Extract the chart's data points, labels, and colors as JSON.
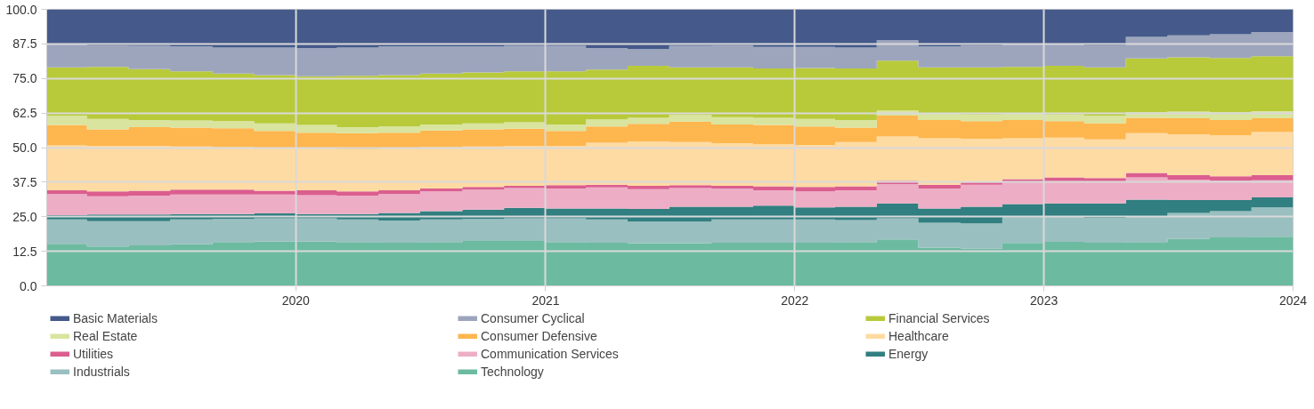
{
  "chart_data": {
    "type": "area",
    "stacked": true,
    "x": [
      "2019-01",
      "2019-03",
      "2019-05",
      "2019-07",
      "2019-09",
      "2019-11",
      "2020-01",
      "2020-03",
      "2020-05",
      "2020-07",
      "2020-09",
      "2020-11",
      "2021-01",
      "2021-03",
      "2021-05",
      "2021-07",
      "2021-09",
      "2021-11",
      "2022-01",
      "2022-03",
      "2022-05",
      "2022-07",
      "2022-09",
      "2022-11",
      "2023-01",
      "2023-03",
      "2023-05",
      "2023-07",
      "2023-09",
      "2023-11",
      "2024-01"
    ],
    "series": [
      {
        "name": "Technology",
        "color": "#6cbba0",
        "values": [
          15.2,
          14.2,
          14.6,
          15.0,
          15.8,
          16.0,
          16.0,
          15.8,
          15.6,
          15.8,
          16.2,
          16.2,
          15.8,
          15.6,
          15.4,
          15.4,
          15.6,
          15.6,
          15.6,
          15.8,
          16.8,
          13.8,
          13.4,
          15.5,
          15.9,
          15.6,
          15.8,
          17.0,
          17.5,
          17.8,
          17.8
        ]
      },
      {
        "name": "Industrials",
        "color": "#9abfc0",
        "values": [
          8.8,
          9.2,
          8.8,
          9.0,
          8.4,
          8.4,
          8.4,
          8.2,
          8.0,
          8.2,
          8.0,
          8.2,
          8.6,
          8.4,
          7.8,
          7.8,
          8.4,
          8.4,
          8.4,
          8.0,
          7.6,
          9.0,
          9.2,
          9.3,
          9.1,
          9.0,
          9.4,
          9.4,
          9.5,
          10.6,
          10.6
        ]
      },
      {
        "name": "Energy",
        "color": "#317f80",
        "values": [
          1.6,
          2.4,
          2.4,
          2.0,
          1.8,
          1.8,
          1.6,
          2.0,
          2.8,
          3.0,
          3.4,
          3.8,
          3.6,
          4.0,
          4.6,
          5.4,
          4.6,
          5.0,
          4.4,
          4.8,
          5.4,
          5.2,
          6.0,
          4.8,
          4.8,
          5.2,
          6.0,
          4.6,
          4.0,
          3.6,
          3.6
        ]
      },
      {
        "name": "Communication Services",
        "color": "#edaec5",
        "values": [
          7.6,
          6.6,
          6.8,
          7.0,
          7.0,
          6.8,
          6.8,
          6.6,
          6.8,
          7.2,
          7.2,
          7.2,
          7.2,
          7.6,
          7.2,
          6.8,
          6.6,
          5.6,
          5.8,
          6.0,
          7.0,
          7.2,
          8.0,
          7.8,
          7.8,
          8.0,
          8.0,
          7.4,
          7.0,
          6.2,
          6.2
        ]
      },
      {
        "name": "Utilities",
        "color": "#db5e8f",
        "values": [
          1.4,
          1.8,
          1.8,
          1.8,
          1.8,
          1.4,
          1.8,
          1.6,
          1.4,
          1.0,
          1.0,
          0.8,
          1.2,
          1.0,
          1.2,
          1.0,
          1.0,
          1.4,
          1.6,
          1.4,
          1.2,
          1.4,
          0.8,
          1.2,
          1.6,
          1.2,
          1.6,
          1.6,
          1.6,
          1.8,
          1.8
        ]
      },
      {
        "name": "Healthcare",
        "color": "#fedba3",
        "values": [
          16.2,
          16.4,
          16.2,
          15.6,
          15.4,
          15.4,
          15.2,
          15.2,
          15.0,
          15.0,
          14.6,
          14.4,
          14.2,
          15.2,
          16.0,
          15.6,
          15.4,
          15.2,
          15.2,
          16.0,
          16.0,
          16.8,
          15.8,
          14.8,
          14.4,
          14.0,
          14.4,
          14.8,
          14.8,
          15.6,
          15.6
        ]
      },
      {
        "name": "Consumer Defensive",
        "color": "#feb64e",
        "values": [
          7.4,
          6.0,
          6.8,
          6.8,
          6.8,
          6.2,
          5.6,
          5.8,
          5.8,
          6.0,
          6.2,
          6.2,
          5.4,
          5.8,
          6.4,
          7.4,
          6.8,
          7.0,
          6.6,
          5.2,
          7.6,
          6.6,
          6.4,
          6.6,
          6.0,
          5.8,
          5.6,
          5.8,
          5.6,
          5.0,
          5.0
        ]
      },
      {
        "name": "Real Estate",
        "color": "#d9e49f",
        "values": [
          3.4,
          3.8,
          2.6,
          2.6,
          2.6,
          2.8,
          2.8,
          2.2,
          2.2,
          2.2,
          2.2,
          2.4,
          2.4,
          2.6,
          2.2,
          2.4,
          2.6,
          2.6,
          2.8,
          2.8,
          1.8,
          2.2,
          2.4,
          2.2,
          2.4,
          2.8,
          2.0,
          2.4,
          2.8,
          2.6,
          2.6
        ]
      },
      {
        "name": "Financial Services",
        "color": "#b8ca3a",
        "values": [
          17.4,
          18.8,
          18.4,
          17.8,
          17.2,
          17.4,
          17.6,
          18.6,
          18.6,
          18.4,
          18.4,
          18.4,
          19.2,
          18.0,
          18.8,
          17.2,
          18.0,
          17.8,
          18.4,
          18.6,
          18.0,
          16.8,
          17.0,
          17.0,
          17.6,
          17.4,
          19.4,
          19.6,
          19.6,
          19.8,
          19.8
        ]
      },
      {
        "name": "Consumer Cyclical",
        "color": "#9da5bd",
        "values": [
          8.4,
          7.8,
          8.4,
          9.0,
          9.4,
          10.0,
          10.2,
          10.2,
          10.4,
          9.8,
          9.4,
          9.2,
          9.2,
          7.8,
          6.0,
          7.8,
          8.0,
          7.8,
          7.6,
          7.6,
          7.4,
          7.6,
          8.0,
          8.0,
          7.6,
          8.0,
          7.8,
          8.0,
          8.6,
          8.8,
          8.8
        ]
      },
      {
        "name": "Basic Materials",
        "color": "#455a8a",
        "values": [
          12.6,
          13.0,
          13.2,
          13.4,
          13.8,
          13.8,
          14.0,
          13.8,
          13.4,
          13.4,
          13.4,
          13.2,
          13.2,
          14.0,
          14.4,
          13.2,
          13.0,
          13.6,
          13.6,
          13.8,
          11.2,
          13.4,
          13.0,
          12.8,
          12.8,
          13.0,
          10.0,
          9.4,
          9.0,
          8.2,
          8.2
        ]
      }
    ],
    "xlim": [
      "2019-01",
      "2024-01"
    ],
    "xticks": [
      "2020",
      "2021",
      "2022",
      "2023",
      "2024"
    ],
    "ylim": [
      0,
      100
    ],
    "yticks": [
      {
        "value": 0,
        "label": "0.0"
      },
      {
        "value": 12.5,
        "label": "12.5"
      },
      {
        "value": 25,
        "label": "25.0"
      },
      {
        "value": 37.5,
        "label": "37.5"
      },
      {
        "value": 50,
        "label": "50.0"
      },
      {
        "value": 62.5,
        "label": "62.5"
      },
      {
        "value": 75,
        "label": "75.0"
      },
      {
        "value": 87.5,
        "label": "87.5"
      },
      {
        "value": 100,
        "label": "100.0"
      }
    ],
    "grid": true,
    "legend": "bottom"
  }
}
